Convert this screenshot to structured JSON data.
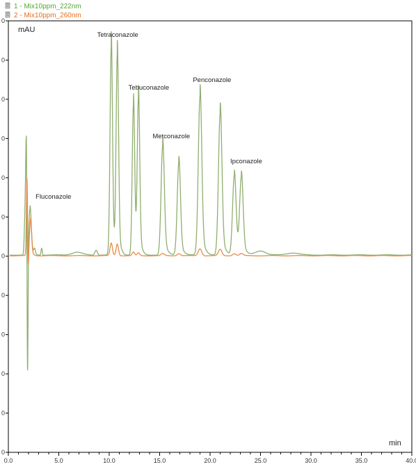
{
  "chart_data": {
    "type": "line",
    "xlabel": "min",
    "ylabel": "mAU",
    "xlim": [
      0.0,
      40.0
    ],
    "x_ticks": [
      "0.0",
      "5.0",
      "10.0",
      "15.0",
      "20.0",
      "25.0",
      "30.0",
      "35.0",
      "40.0"
    ],
    "y_tick_count": 12,
    "grid": false,
    "legend_position": "top-left",
    "series": [
      {
        "name": "1 - Mix10ppm_222nm",
        "color": "#8fae6e",
        "legend_color": "#52a82e",
        "baseline": 367,
        "peaks": [
          {
            "t": 1.65,
            "h": 55,
            "w": 0.07
          },
          {
            "t": 1.78,
            "h": 160,
            "w": 0.06
          },
          {
            "t": 1.9,
            "h": -205,
            "w": 0.05
          },
          {
            "t": 2.15,
            "h": 65,
            "w": 0.12
          },
          {
            "t": 2.6,
            "h": 8,
            "w": 0.08
          },
          {
            "t": 3.3,
            "h": 10,
            "w": 0.06
          },
          {
            "t": 6.8,
            "h": 4,
            "w": 0.5
          },
          {
            "t": 8.7,
            "h": 7,
            "w": 0.12
          },
          {
            "t": 10.2,
            "h": 298,
            "w": 0.12
          },
          {
            "t": 10.8,
            "h": 283,
            "w": 0.12
          },
          {
            "t": 12.4,
            "h": 216,
            "w": 0.12
          },
          {
            "t": 12.9,
            "h": 222,
            "w": 0.12
          },
          {
            "t": 15.3,
            "h": 156,
            "w": 0.16
          },
          {
            "t": 16.9,
            "h": 132,
            "w": 0.16
          },
          {
            "t": 19.0,
            "h": 228,
            "w": 0.17
          },
          {
            "t": 21.0,
            "h": 203,
            "w": 0.17
          },
          {
            "t": 22.4,
            "h": 114,
            "w": 0.17
          },
          {
            "t": 23.1,
            "h": 110,
            "w": 0.17
          },
          {
            "t": 25.0,
            "h": 6,
            "w": 0.5
          },
          {
            "t": 28.2,
            "h": 3,
            "w": 0.6
          }
        ]
      },
      {
        "name": "2 - Mix10ppm_260nm",
        "color": "#e88a4a",
        "legend_color": "#e56f1f",
        "baseline": 368,
        "peaks": [
          {
            "t": 1.85,
            "h": 108,
            "w": 0.06
          },
          {
            "t": 1.95,
            "h": -40,
            "w": 0.05
          },
          {
            "t": 2.2,
            "h": 50,
            "w": 0.1
          },
          {
            "t": 10.2,
            "h": 18,
            "w": 0.12
          },
          {
            "t": 10.8,
            "h": 17,
            "w": 0.12
          },
          {
            "t": 12.4,
            "h": 5,
            "w": 0.12
          },
          {
            "t": 12.9,
            "h": 4,
            "w": 0.12
          },
          {
            "t": 15.3,
            "h": 3,
            "w": 0.16
          },
          {
            "t": 16.9,
            "h": 3,
            "w": 0.16
          },
          {
            "t": 19.0,
            "h": 10,
            "w": 0.17
          },
          {
            "t": 21.0,
            "h": 9,
            "w": 0.17
          },
          {
            "t": 22.4,
            "h": 3,
            "w": 0.17
          },
          {
            "t": 23.1,
            "h": 3,
            "w": 0.17
          }
        ]
      }
    ],
    "annotations": [
      {
        "text": "Fluconazole",
        "t": 2.7,
        "level": 286
      },
      {
        "text": "Tetraconazole",
        "t": 8.8,
        "level": 53
      },
      {
        "text": "Tebuconazole",
        "t": 11.9,
        "level": 129
      },
      {
        "text": "Metconazole",
        "t": 14.3,
        "level": 199
      },
      {
        "text": "Penconazole",
        "t": 18.3,
        "level": 118
      },
      {
        "text": "Ipconazole",
        "t": 22.0,
        "level": 235
      }
    ]
  }
}
